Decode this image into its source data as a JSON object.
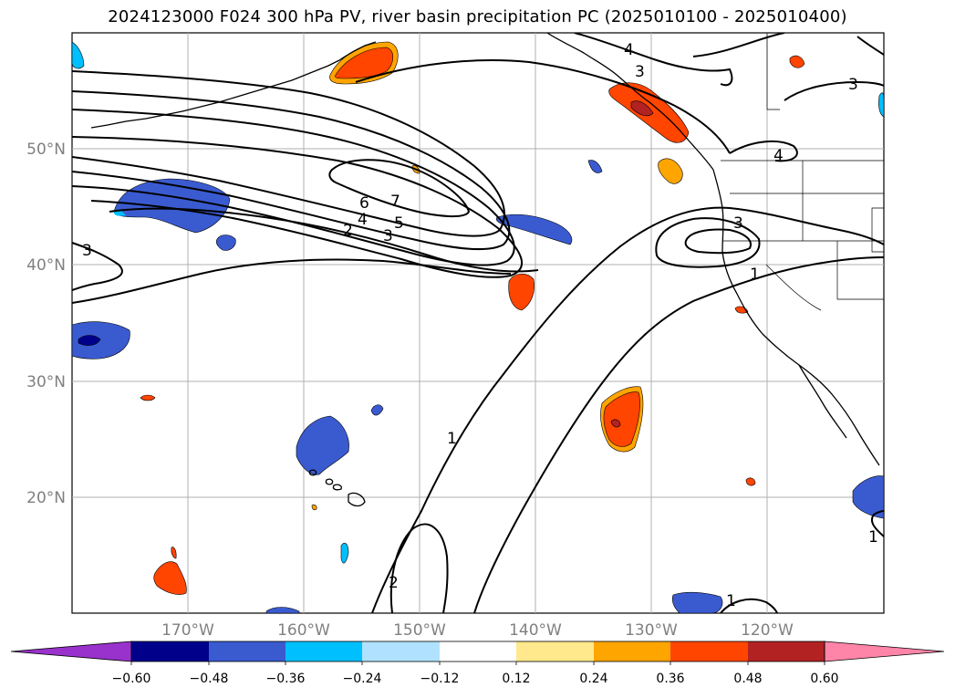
{
  "title": "2024123000 F024 300 hPa PV, river basin precipitation PC (2025010100 - 2025010400)",
  "map": {
    "lat_labels": [
      "50°N",
      "40°N",
      "30°N",
      "20°N"
    ],
    "lon_labels": [
      "170°W",
      "160°W",
      "150°W",
      "140°W",
      "130°W",
      "120°W"
    ],
    "contour_labels": [
      "4",
      "3",
      "3",
      "6",
      "7",
      "4",
      "5",
      "2",
      "3",
      "3",
      "4",
      "1",
      "1",
      "1",
      "1",
      "2"
    ]
  },
  "colorbar": {
    "ticks": [
      "−0.60",
      "−0.48",
      "−0.36",
      "−0.24",
      "−0.12",
      "0.12",
      "0.24",
      "0.36",
      "0.48",
      "0.60"
    ],
    "colors": [
      "#9932cc",
      "#00008b",
      "#3a5bd0",
      "#00bfff",
      "#b0e2ff",
      "#ffffff",
      "#ffe98c",
      "#ffa500",
      "#ff4500",
      "#b22222",
      "#ff85a8"
    ]
  }
}
